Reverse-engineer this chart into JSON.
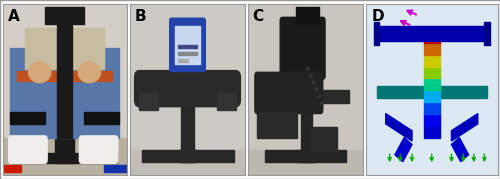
{
  "figsize": [
    5.0,
    1.79
  ],
  "dpi": 100,
  "bg_color": "#ffffff",
  "panel_label_fontsize": 11,
  "panel_label_fontweight": "bold",
  "border_color": "#999999",
  "panel_rects": {
    "A": [
      0.005,
      0.02,
      0.248,
      0.96
    ],
    "B": [
      0.26,
      0.02,
      0.23,
      0.96
    ],
    "C": [
      0.496,
      0.02,
      0.23,
      0.96
    ],
    "D": [
      0.732,
      0.02,
      0.263,
      0.96
    ]
  },
  "panel_bg": {
    "A": "#c8bfae",
    "B": "#cac8c0",
    "C": "#c5c2ba",
    "D": "#dce8f2"
  },
  "photo_colors": {
    "A_floor": "#b8b0a0",
    "A_wall": "#d4cfc6",
    "A_jeans": "#5878aa",
    "A_shirt": "#c8bca0",
    "A_skin": "#d4a878",
    "A_device": "#1a1a1a",
    "A_shoes": "#f0eeec",
    "A_chair": "#c05020",
    "A_strap_red": "#cc1a00",
    "A_strap_blue": "#2244aa",
    "B_wall": "#cbcac4",
    "B_device": "#282828",
    "B_screen_bg": "#2244aa",
    "B_screen_fg": "#c8d8f0",
    "C_wall": "#c8c6be",
    "C_device": "#242424",
    "D_bg": "#dce8f2",
    "D_teal": "#008888",
    "D_blue": "#0000cc",
    "D_green": "#00aa00",
    "D_yellow": "#cccc00",
    "D_red": "#cc0000",
    "D_magenta": "#cc00cc"
  }
}
